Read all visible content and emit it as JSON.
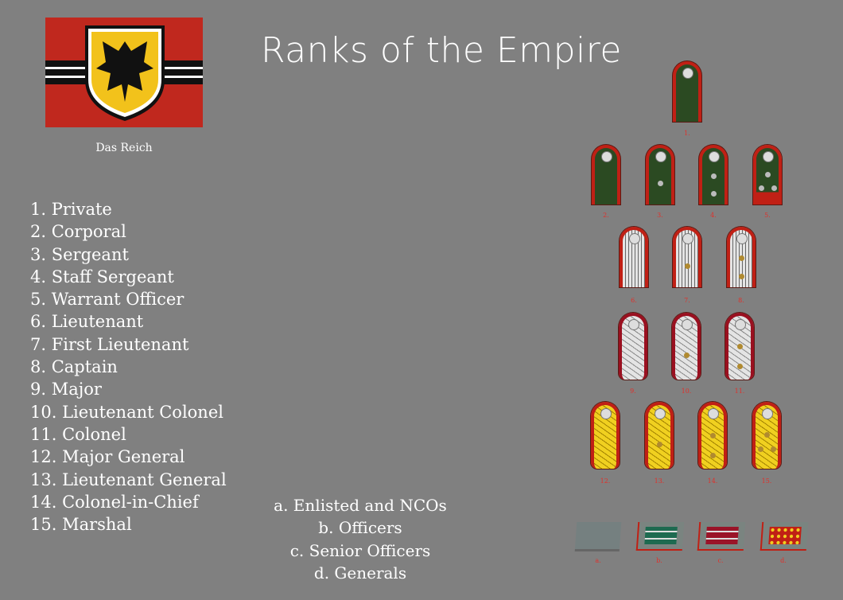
{
  "title": "Ranks of the Empire",
  "flag": {
    "caption": "Das Reich",
    "colors": {
      "field": "#c0281e",
      "stripe": "#111111",
      "shield": "#f2c21b"
    }
  },
  "ranks": [
    "1. Private",
    "2. Corporal",
    "3. Sergeant",
    "4. Staff Sergeant",
    "5. Warrant Officer",
    "6. Lieutenant",
    "7. First Lieutenant",
    "8. Captain",
    "9. Major",
    "10. Lieutenant Colonel",
    "11. Colonel",
    "12. Major General",
    "13. Lieutenant General",
    "14. Colonel-in-Chief",
    "15. Marshal"
  ],
  "categories": [
    "a. Enlisted and NCOs",
    "b. Officers",
    "c. Senior Officers",
    "d. Generals"
  ],
  "insignia": {
    "shoulder_labels": [
      "1.",
      "2.",
      "3.",
      "4.",
      "5.",
      "6.",
      "7.",
      "8.",
      "9.",
      "10.",
      "11.",
      "12.",
      "13.",
      "14.",
      "15."
    ],
    "pips": [
      0,
      0,
      1,
      2,
      3,
      0,
      1,
      2,
      0,
      1,
      2,
      0,
      1,
      2,
      3
    ],
    "styles": [
      "enlisted",
      "enlisted",
      "enlisted",
      "enlisted",
      "warrant",
      "officer",
      "officer",
      "officer",
      "senior",
      "senior",
      "senior",
      "general",
      "general",
      "general",
      "general"
    ],
    "collar_labels": [
      "a.",
      "b.",
      "c.",
      "d."
    ],
    "colors": {
      "green": "#2b4a22",
      "piping": "#c02015",
      "silver": "#e4e4e4",
      "gold": "#f0d020",
      "label": "#e0302a"
    }
  }
}
